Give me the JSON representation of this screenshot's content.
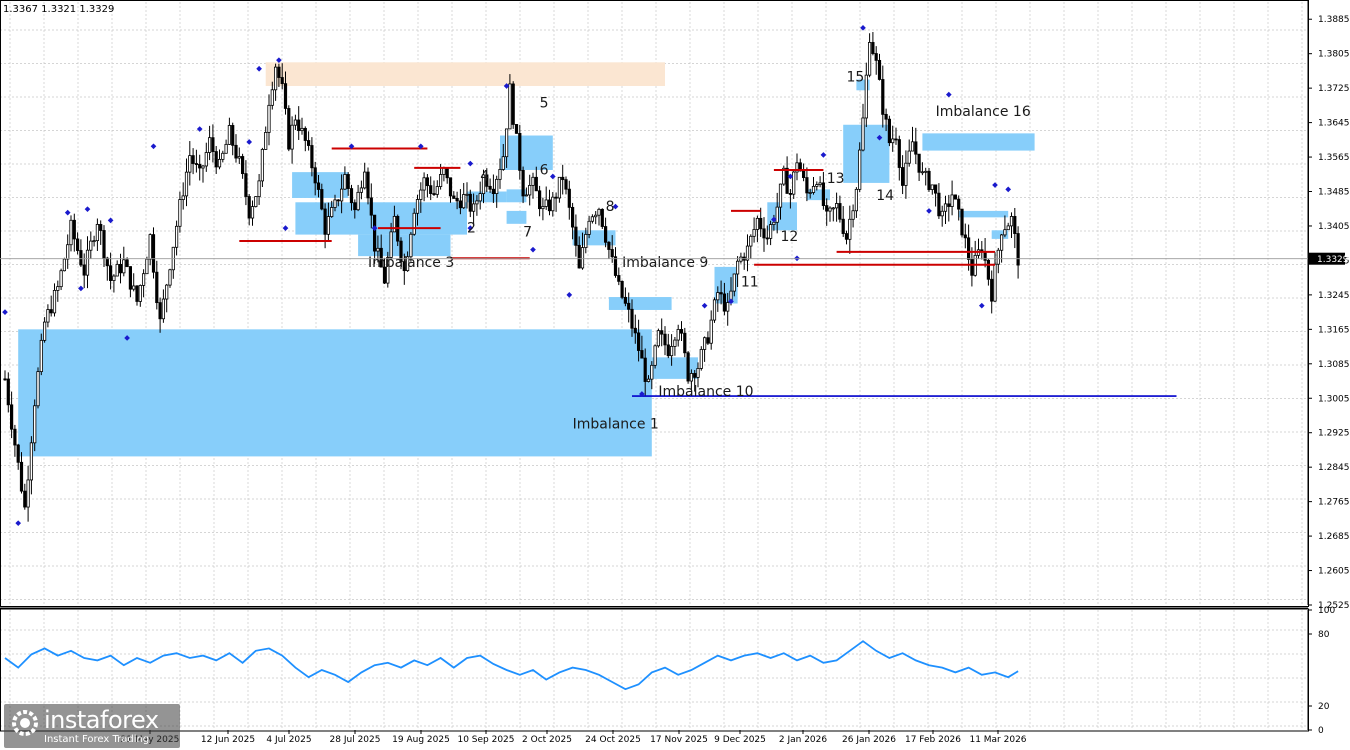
{
  "header": {
    "ohlc_text": "1.3367 1.3321 1.3329"
  },
  "logo": {
    "name": "instaforex",
    "tagline": "Instant Forex Trading"
  },
  "colors": {
    "candle": "#000000",
    "imbalance_zone": "#87cefa",
    "supply_zone": "#fbe6d2",
    "level_red": "#cc0000",
    "level_blue": "#0000cc",
    "oscillator": "#1e90ff",
    "fractal_dot": "#1a1acd",
    "grid": "#c8c8c8"
  },
  "chart_data": [
    {
      "type": "candlestick",
      "title": "",
      "ylim": [
        1.2525,
        1.3925
      ],
      "y_ticks": [
        "1.3885",
        "1.3805",
        "1.3725",
        "1.3645",
        "1.3565",
        "1.3485",
        "1.3405",
        "1.3325",
        "1.3245",
        "1.3165",
        "1.3085",
        "1.3005",
        "1.2925",
        "1.2845",
        "1.2765",
        "1.2685",
        "1.2605",
        "1.2525"
      ],
      "current_price": "1.3329",
      "x_ticks": [
        "21 May 2025",
        "12 Jun 2025",
        "4 Jul 2025",
        "28 Jul 2025",
        "19 Aug 2025",
        "10 Sep 2025",
        "2 Oct 2025",
        "24 Oct 2025",
        "17 Nov 2025",
        "9 Dec 2025",
        "2 Jan 2026",
        "26 Jan 2026",
        "17 Feb 2026",
        "11 Mar 2026"
      ],
      "close_path": [
        [
          0,
          1.305
        ],
        [
          3,
          1.29
        ],
        [
          6,
          1.275
        ],
        [
          9,
          1.3
        ],
        [
          12,
          1.318
        ],
        [
          16,
          1.326
        ],
        [
          20,
          1.34
        ],
        [
          24,
          1.33
        ],
        [
          28,
          1.342
        ],
        [
          32,
          1.328
        ],
        [
          36,
          1.332
        ],
        [
          40,
          1.323
        ],
        [
          44,
          1.338
        ],
        [
          47,
          1.318
        ],
        [
          50,
          1.332
        ],
        [
          53,
          1.345
        ],
        [
          56,
          1.357
        ],
        [
          59,
          1.352
        ],
        [
          62,
          1.36
        ],
        [
          65,
          1.354
        ],
        [
          68,
          1.362
        ],
        [
          71,
          1.355
        ],
        [
          74,
          1.344
        ],
        [
          77,
          1.35
        ],
        [
          80,
          1.37
        ],
        [
          82,
          1.378
        ],
        [
          84,
          1.372
        ],
        [
          86,
          1.36
        ],
        [
          88,
          1.366
        ],
        [
          91,
          1.36
        ],
        [
          94,
          1.352
        ],
        [
          97,
          1.34
        ],
        [
          100,
          1.345
        ],
        [
          103,
          1.352
        ],
        [
          106,
          1.344
        ],
        [
          109,
          1.355
        ],
        [
          112,
          1.336
        ],
        [
          115,
          1.328
        ],
        [
          118,
          1.342
        ],
        [
          121,
          1.33
        ],
        [
          124,
          1.345
        ],
        [
          127,
          1.351
        ],
        [
          130,
          1.348
        ],
        [
          133,
          1.353
        ],
        [
          136,
          1.346
        ],
        [
          139,
          1.347
        ],
        [
          142,
          1.344
        ],
        [
          145,
          1.352
        ],
        [
          148,
          1.35
        ],
        [
          151,
          1.357
        ],
        [
          153,
          1.372
        ],
        [
          155,
          1.36
        ],
        [
          157,
          1.349
        ],
        [
          160,
          1.35
        ],
        [
          163,
          1.344
        ],
        [
          166,
          1.346
        ],
        [
          169,
          1.352
        ],
        [
          172,
          1.34
        ],
        [
          174,
          1.33
        ],
        [
          177,
          1.343
        ],
        [
          180,
          1.345
        ],
        [
          183,
          1.335
        ],
        [
          186,
          1.326
        ],
        [
          189,
          1.32
        ],
        [
          192,
          1.312
        ],
        [
          195,
          1.303
        ],
        [
          198,
          1.315
        ],
        [
          201,
          1.312
        ],
        [
          204,
          1.318
        ],
        [
          207,
          1.306
        ],
        [
          210,
          1.308
        ],
        [
          213,
          1.315
        ],
        [
          216,
          1.325
        ],
        [
          219,
          1.321
        ],
        [
          222,
          1.332
        ],
        [
          225,
          1.335
        ],
        [
          228,
          1.342
        ],
        [
          231,
          1.338
        ],
        [
          234,
          1.345
        ],
        [
          236,
          1.352
        ],
        [
          238,
          1.348
        ],
        [
          240,
          1.356
        ],
        [
          243,
          1.348
        ],
        [
          246,
          1.352
        ],
        [
          249,
          1.342
        ],
        [
          252,
          1.345
        ],
        [
          255,
          1.338
        ],
        [
          258,
          1.35
        ],
        [
          260,
          1.365
        ],
        [
          262,
          1.385
        ],
        [
          264,
          1.378
        ],
        [
          266,
          1.368
        ],
        [
          268,
          1.36
        ],
        [
          270,
          1.362
        ],
        [
          272,
          1.35
        ],
        [
          275,
          1.36
        ],
        [
          278,
          1.352
        ],
        [
          281,
          1.35
        ],
        [
          284,
          1.342
        ],
        [
          287,
          1.348
        ],
        [
          290,
          1.34
        ],
        [
          293,
          1.33
        ],
        [
          296,
          1.336
        ],
        [
          299,
          1.325
        ],
        [
          302,
          1.34
        ],
        [
          305,
          1.342
        ],
        [
          307,
          1.333
        ]
      ],
      "fractal_highs": [
        [
          0,
          1.3205
        ],
        [
          19,
          1.3436
        ],
        [
          25,
          1.3444
        ],
        [
          32,
          1.3418
        ],
        [
          45,
          1.359
        ],
        [
          59,
          1.363
        ],
        [
          77,
          1.377
        ],
        [
          83,
          1.379
        ],
        [
          105,
          1.359
        ],
        [
          126,
          1.359
        ],
        [
          141,
          1.355
        ],
        [
          152,
          1.373
        ],
        [
          166,
          1.352
        ],
        [
          185,
          1.345
        ],
        [
          212,
          1.322
        ],
        [
          233,
          1.342
        ],
        [
          238,
          1.352
        ],
        [
          248,
          1.357
        ],
        [
          260,
          1.3865
        ],
        [
          286,
          1.371
        ],
        [
          304,
          1.349
        ],
        [
          300,
          1.35
        ]
      ],
      "fractal_lows": [
        [
          4,
          1.2715
        ],
        [
          23,
          1.326
        ],
        [
          37,
          1.3145
        ],
        [
          74,
          1.36
        ],
        [
          85,
          1.34
        ],
        [
          112,
          1.34
        ],
        [
          141,
          1.34
        ],
        [
          160,
          1.335
        ],
        [
          171,
          1.3245
        ],
        [
          193,
          1.3015
        ],
        [
          220,
          1.323
        ],
        [
          240,
          1.333
        ],
        [
          265,
          1.361
        ],
        [
          280,
          1.344
        ],
        [
          296,
          1.322
        ]
      ],
      "imbalance_zones": [
        {
          "label": "Imbalance 1",
          "i0": 4,
          "i1": 196,
          "high": 1.3165,
          "low": 1.287
        },
        {
          "label": "2",
          "i0": 88,
          "i1": 140,
          "high": 1.346,
          "low": 1.3385
        },
        {
          "label": "Imbalance 3",
          "i0": 107,
          "i1": 135,
          "high": 1.3385,
          "low": 1.3335
        },
        {
          "label": "4",
          "i0": 140,
          "i1": 152,
          "high": 1.3485,
          "low": 1.346
        },
        {
          "label": "5",
          "i0": 150,
          "i1": 166,
          "high": 1.3615,
          "low": 1.3535
        },
        {
          "label": "6",
          "i0": 152,
          "i1": 158,
          "high": 1.349,
          "low": 1.346
        },
        {
          "label": "7",
          "i0": 152,
          "i1": 158,
          "high": 1.344,
          "low": 1.341
        },
        {
          "label": "8",
          "i0": 172,
          "i1": 185,
          "high": 1.3395,
          "low": 1.336
        },
        {
          "label": "Imbalance 9",
          "i0": 183,
          "i1": 202,
          "high": 1.324,
          "low": 1.321
        },
        {
          "label": "Imbalance 10",
          "i0": 196,
          "i1": 210,
          "high": 1.31,
          "low": 1.305
        },
        {
          "label": "11",
          "i0": 215,
          "i1": 222,
          "high": 1.331,
          "low": 1.3225
        },
        {
          "label": "12",
          "i0": 231,
          "i1": 240,
          "high": 1.346,
          "low": 1.3395
        },
        {
          "label": "13",
          "i0": 243,
          "i1": 250,
          "high": 1.349,
          "low": 1.3465
        },
        {
          "label": "14",
          "i0": 254,
          "i1": 268,
          "high": 1.364,
          "low": 1.3505
        },
        {
          "label": "15",
          "i0": 258,
          "i1": 262,
          "high": 1.3745,
          "low": 1.372
        },
        {
          "label": "Imbalance 16",
          "i0": 278,
          "i1": 312,
          "high": 1.362,
          "low": 1.358
        },
        {
          "label": "",
          "i0": 289,
          "i1": 304,
          "high": 1.344,
          "low": 1.3425
        },
        {
          "label": "",
          "i0": 299,
          "i1": 304,
          "high": 1.3395,
          "low": 1.3375
        },
        {
          "label": "",
          "i0": 87,
          "i1": 104,
          "high": 1.353,
          "low": 1.347
        }
      ],
      "zone_labels": [
        {
          "text": "Imbalance 1",
          "i": 172,
          "y": 1.2935
        },
        {
          "text": "2",
          "i": 140,
          "y": 1.339
        },
        {
          "text": "Imbalance 3",
          "i": 110,
          "y": 1.331
        },
        {
          "text": "4",
          "i": 144,
          "y": 1.351
        },
        {
          "text": "5",
          "i": 162,
          "y": 1.368
        },
        {
          "text": "6",
          "i": 162,
          "y": 1.3525
        },
        {
          "text": "7",
          "i": 157,
          "y": 1.338
        },
        {
          "text": "8",
          "i": 182,
          "y": 1.344
        },
        {
          "text": "Imbalance 9",
          "i": 187,
          "y": 1.331
        },
        {
          "text": "Imbalance 10",
          "i": 198,
          "y": 1.301
        },
        {
          "text": "11",
          "i": 223,
          "y": 1.3265
        },
        {
          "text": "12",
          "i": 235,
          "y": 1.337
        },
        {
          "text": "13",
          "i": 249,
          "y": 1.3505
        },
        {
          "text": "14",
          "i": 264,
          "y": 1.3465
        },
        {
          "text": "15",
          "i": 255,
          "y": 1.374
        },
        {
          "text": "Imbalance 16",
          "i": 282,
          "y": 1.366
        }
      ],
      "supply_zones": [
        {
          "i0": 79,
          "i1": 200,
          "high": 1.3785,
          "low": 1.373
        }
      ],
      "red_levels": [
        {
          "i0": 71,
          "i1": 99,
          "y": 1.337
        },
        {
          "i0": 99,
          "i1": 128,
          "y": 1.3585
        },
        {
          "i0": 113,
          "i1": 132,
          "y": 1.34
        },
        {
          "i0": 124,
          "i1": 138,
          "y": 1.354
        },
        {
          "i0": 135,
          "i1": 159,
          "y": 1.333
        },
        {
          "i0": 220,
          "i1": 229,
          "y": 1.344
        },
        {
          "i0": 227,
          "i1": 300,
          "y": 1.3315
        },
        {
          "i0": 233,
          "i1": 248,
          "y": 1.3535
        },
        {
          "i0": 252,
          "i1": 300,
          "y": 1.3345
        }
      ],
      "blue_levels": [
        {
          "i0": 190,
          "i1": 355,
          "y": 1.301
        }
      ]
    },
    {
      "type": "line",
      "title": "",
      "ylim": [
        0,
        100
      ],
      "y_ticks": [
        "100",
        "80",
        "20",
        "0"
      ],
      "series": [
        {
          "values": [
            [
              0,
              60
            ],
            [
              4,
              52
            ],
            [
              8,
              63
            ],
            [
              12,
              68
            ],
            [
              16,
              62
            ],
            [
              20,
              66
            ],
            [
              24,
              60
            ],
            [
              28,
              58
            ],
            [
              32,
              62
            ],
            [
              36,
              54
            ],
            [
              40,
              60
            ],
            [
              44,
              56
            ],
            [
              48,
              62
            ],
            [
              52,
              64
            ],
            [
              56,
              60
            ],
            [
              60,
              62
            ],
            [
              64,
              58
            ],
            [
              68,
              64
            ],
            [
              72,
              56
            ],
            [
              76,
              66
            ],
            [
              80,
              68
            ],
            [
              84,
              62
            ],
            [
              88,
              52
            ],
            [
              92,
              44
            ],
            [
              96,
              50
            ],
            [
              100,
              46
            ],
            [
              104,
              40
            ],
            [
              108,
              48
            ],
            [
              112,
              54
            ],
            [
              116,
              56
            ],
            [
              120,
              52
            ],
            [
              124,
              58
            ],
            [
              128,
              54
            ],
            [
              132,
              60
            ],
            [
              136,
              52
            ],
            [
              140,
              60
            ],
            [
              144,
              62
            ],
            [
              148,
              55
            ],
            [
              152,
              50
            ],
            [
              156,
              46
            ],
            [
              160,
              50
            ],
            [
              164,
              42
            ],
            [
              168,
              48
            ],
            [
              172,
              52
            ],
            [
              176,
              50
            ],
            [
              180,
              46
            ],
            [
              184,
              40
            ],
            [
              188,
              34
            ],
            [
              192,
              38
            ],
            [
              196,
              48
            ],
            [
              200,
              52
            ],
            [
              204,
              46
            ],
            [
              208,
              50
            ],
            [
              212,
              56
            ],
            [
              216,
              62
            ],
            [
              220,
              58
            ],
            [
              224,
              62
            ],
            [
              228,
              64
            ],
            [
              232,
              60
            ],
            [
              236,
              64
            ],
            [
              240,
              58
            ],
            [
              244,
              62
            ],
            [
              248,
              56
            ],
            [
              252,
              58
            ],
            [
              256,
              66
            ],
            [
              260,
              74
            ],
            [
              264,
              66
            ],
            [
              268,
              60
            ],
            [
              272,
              64
            ],
            [
              276,
              58
            ],
            [
              280,
              54
            ],
            [
              284,
              52
            ],
            [
              288,
              48
            ],
            [
              292,
              52
            ],
            [
              296,
              46
            ],
            [
              300,
              48
            ],
            [
              304,
              44
            ],
            [
              307,
              49
            ]
          ]
        }
      ]
    }
  ]
}
